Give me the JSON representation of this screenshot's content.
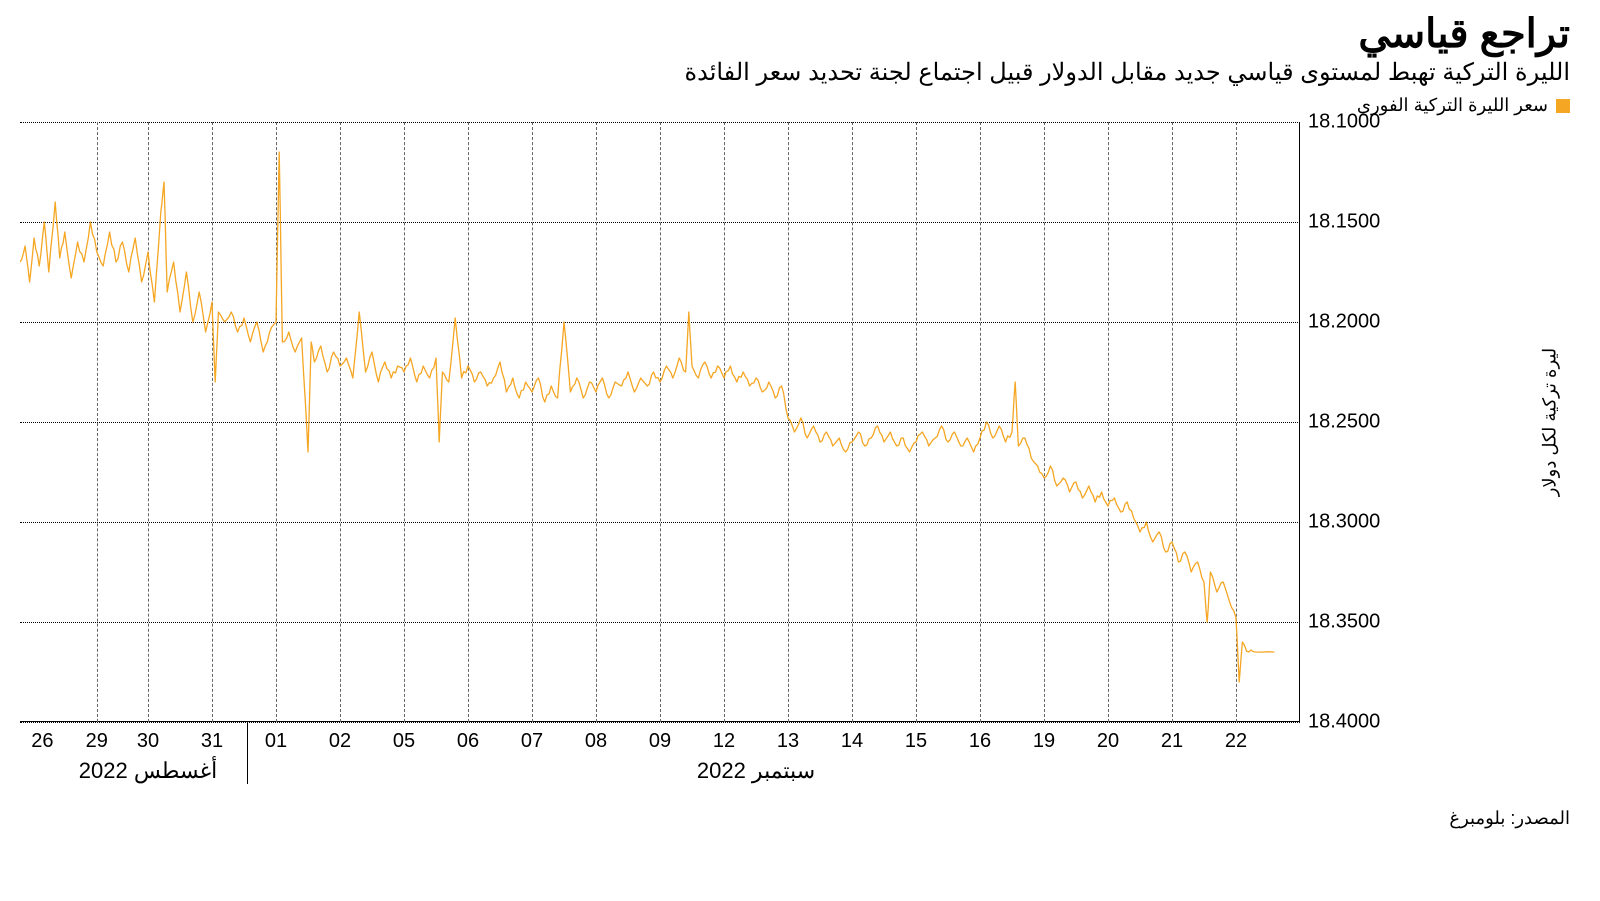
{
  "title": "تراجع قياسي",
  "subtitle": "الليرة التركية تهبط لمستوى قياسي جديد مقابل الدولار قبيل اجتماع لجنة تحديد سعر الفائدة",
  "legend": {
    "label": "سعر الليرة التركية الفوري",
    "color": "#f5a623"
  },
  "source": "المصدر: بلومبرغ",
  "chart": {
    "type": "line",
    "background_color": "#ffffff",
    "line_color": "#f5a623",
    "line_width": 1.3,
    "grid_color_h": "#000000",
    "grid_color_v": "#666666",
    "axis_color": "#000000",
    "label_fontsize": 20,
    "title_fontsize": 40,
    "subtitle_fontsize": 24,
    "ylabel": "ليرة تركية لكل دولار",
    "y_inverted": true,
    "ylim": [
      18.1,
      18.4
    ],
    "ytick_step": 0.05,
    "yticks": [
      "18.1000",
      "18.1500",
      "18.2000",
      "18.2500",
      "18.3000",
      "18.3500",
      "18.4000"
    ],
    "x_total_slots": 20,
    "xticks": [
      {
        "slot": 0.35,
        "label": "26"
      },
      {
        "slot": 1.2,
        "label": "29"
      },
      {
        "slot": 2.0,
        "label": "30"
      },
      {
        "slot": 3.0,
        "label": "31"
      },
      {
        "slot": 4.0,
        "label": "01"
      },
      {
        "slot": 5.0,
        "label": "02"
      },
      {
        "slot": 6.0,
        "label": "05"
      },
      {
        "slot": 7.0,
        "label": "06"
      },
      {
        "slot": 8.0,
        "label": "07"
      },
      {
        "slot": 9.0,
        "label": "08"
      },
      {
        "slot": 10.0,
        "label": "09"
      },
      {
        "slot": 11.0,
        "label": "12"
      },
      {
        "slot": 12.0,
        "label": "13"
      },
      {
        "slot": 13.0,
        "label": "14"
      },
      {
        "slot": 14.0,
        "label": "15"
      },
      {
        "slot": 15.0,
        "label": "16"
      },
      {
        "slot": 16.0,
        "label": "19"
      },
      {
        "slot": 17.0,
        "label": "20"
      },
      {
        "slot": 18.0,
        "label": "21"
      },
      {
        "slot": 19.0,
        "label": "22"
      }
    ],
    "x_group_labels": [
      {
        "center_slot": 2.0,
        "label": "أغسطس 2022"
      },
      {
        "center_slot": 11.5,
        "label": "سبتمبر 2022"
      }
    ],
    "x_group_separator_slot": 3.55,
    "series": [
      {
        "x": 0.0,
        "y": 18.17
      },
      {
        "x": 0.08,
        "y": 18.162
      },
      {
        "x": 0.15,
        "y": 18.18
      },
      {
        "x": 0.22,
        "y": 18.158
      },
      {
        "x": 0.3,
        "y": 18.172
      },
      {
        "x": 0.38,
        "y": 18.15
      },
      {
        "x": 0.45,
        "y": 18.175
      },
      {
        "x": 0.55,
        "y": 18.14
      },
      {
        "x": 0.62,
        "y": 18.168
      },
      {
        "x": 0.7,
        "y": 18.155
      },
      {
        "x": 0.8,
        "y": 18.178
      },
      {
        "x": 0.9,
        "y": 18.16
      },
      {
        "x": 1.0,
        "y": 18.17
      },
      {
        "x": 1.1,
        "y": 18.15
      },
      {
        "x": 1.2,
        "y": 18.165
      },
      {
        "x": 1.3,
        "y": 18.172
      },
      {
        "x": 1.4,
        "y": 18.155
      },
      {
        "x": 1.5,
        "y": 18.17
      },
      {
        "x": 1.6,
        "y": 18.16
      },
      {
        "x": 1.7,
        "y": 18.175
      },
      {
        "x": 1.8,
        "y": 18.158
      },
      {
        "x": 1.9,
        "y": 18.18
      },
      {
        "x": 2.0,
        "y": 18.165
      },
      {
        "x": 2.1,
        "y": 18.19
      },
      {
        "x": 2.2,
        "y": 18.145
      },
      {
        "x": 2.25,
        "y": 18.13
      },
      {
        "x": 2.3,
        "y": 18.185
      },
      {
        "x": 2.4,
        "y": 18.17
      },
      {
        "x": 2.5,
        "y": 18.195
      },
      {
        "x": 2.6,
        "y": 18.175
      },
      {
        "x": 2.7,
        "y": 18.2
      },
      {
        "x": 2.8,
        "y": 18.185
      },
      {
        "x": 2.9,
        "y": 18.205
      },
      {
        "x": 3.0,
        "y": 18.19
      },
      {
        "x": 3.05,
        "y": 18.23
      },
      {
        "x": 3.1,
        "y": 18.195
      },
      {
        "x": 3.2,
        "y": 18.2
      },
      {
        "x": 3.3,
        "y": 18.195
      },
      {
        "x": 3.4,
        "y": 18.205
      },
      {
        "x": 3.5,
        "y": 18.198
      },
      {
        "x": 3.6,
        "y": 18.21
      },
      {
        "x": 3.7,
        "y": 18.2
      },
      {
        "x": 3.8,
        "y": 18.215
      },
      {
        "x": 3.9,
        "y": 18.205
      },
      {
        "x": 4.0,
        "y": 18.2
      },
      {
        "x": 4.05,
        "y": 18.115
      },
      {
        "x": 4.1,
        "y": 18.21
      },
      {
        "x": 4.2,
        "y": 18.205
      },
      {
        "x": 4.3,
        "y": 18.215
      },
      {
        "x": 4.4,
        "y": 18.208
      },
      {
        "x": 4.5,
        "y": 18.265
      },
      {
        "x": 4.55,
        "y": 18.21
      },
      {
        "x": 4.6,
        "y": 18.22
      },
      {
        "x": 4.7,
        "y": 18.212
      },
      {
        "x": 4.8,
        "y": 18.225
      },
      {
        "x": 4.9,
        "y": 18.215
      },
      {
        "x": 5.0,
        "y": 18.222
      },
      {
        "x": 5.1,
        "y": 18.218
      },
      {
        "x": 5.2,
        "y": 18.228
      },
      {
        "x": 5.3,
        "y": 18.195
      },
      {
        "x": 5.4,
        "y": 18.225
      },
      {
        "x": 5.5,
        "y": 18.215
      },
      {
        "x": 5.6,
        "y": 18.23
      },
      {
        "x": 5.7,
        "y": 18.22
      },
      {
        "x": 5.8,
        "y": 18.228
      },
      {
        "x": 5.9,
        "y": 18.222
      },
      {
        "x": 6.0,
        "y": 18.225
      },
      {
        "x": 6.1,
        "y": 18.218
      },
      {
        "x": 6.2,
        "y": 18.23
      },
      {
        "x": 6.3,
        "y": 18.222
      },
      {
        "x": 6.4,
        "y": 18.228
      },
      {
        "x": 6.5,
        "y": 18.218
      },
      {
        "x": 6.55,
        "y": 18.26
      },
      {
        "x": 6.6,
        "y": 18.225
      },
      {
        "x": 6.7,
        "y": 18.23
      },
      {
        "x": 6.8,
        "y": 18.198
      },
      {
        "x": 6.9,
        "y": 18.228
      },
      {
        "x": 7.0,
        "y": 18.222
      },
      {
        "x": 7.1,
        "y": 18.23
      },
      {
        "x": 7.2,
        "y": 18.225
      },
      {
        "x": 7.3,
        "y": 18.232
      },
      {
        "x": 7.4,
        "y": 18.228
      },
      {
        "x": 7.5,
        "y": 18.22
      },
      {
        "x": 7.6,
        "y": 18.235
      },
      {
        "x": 7.7,
        "y": 18.228
      },
      {
        "x": 7.8,
        "y": 18.238
      },
      {
        "x": 7.9,
        "y": 18.23
      },
      {
        "x": 8.0,
        "y": 18.235
      },
      {
        "x": 8.1,
        "y": 18.228
      },
      {
        "x": 8.2,
        "y": 18.24
      },
      {
        "x": 8.3,
        "y": 18.232
      },
      {
        "x": 8.4,
        "y": 18.238
      },
      {
        "x": 8.5,
        "y": 18.2
      },
      {
        "x": 8.6,
        "y": 18.235
      },
      {
        "x": 8.7,
        "y": 18.228
      },
      {
        "x": 8.8,
        "y": 18.238
      },
      {
        "x": 8.9,
        "y": 18.23
      },
      {
        "x": 9.0,
        "y": 18.235
      },
      {
        "x": 9.1,
        "y": 18.228
      },
      {
        "x": 9.2,
        "y": 18.238
      },
      {
        "x": 9.3,
        "y": 18.23
      },
      {
        "x": 9.4,
        "y": 18.232
      },
      {
        "x": 9.5,
        "y": 18.225
      },
      {
        "x": 9.6,
        "y": 18.235
      },
      {
        "x": 9.7,
        "y": 18.228
      },
      {
        "x": 9.8,
        "y": 18.232
      },
      {
        "x": 9.9,
        "y": 18.225
      },
      {
        "x": 10.0,
        "y": 18.23
      },
      {
        "x": 10.1,
        "y": 18.222
      },
      {
        "x": 10.2,
        "y": 18.228
      },
      {
        "x": 10.3,
        "y": 18.218
      },
      {
        "x": 10.4,
        "y": 18.225
      },
      {
        "x": 10.45,
        "y": 18.195
      },
      {
        "x": 10.5,
        "y": 18.222
      },
      {
        "x": 10.6,
        "y": 18.228
      },
      {
        "x": 10.7,
        "y": 18.22
      },
      {
        "x": 10.8,
        "y": 18.228
      },
      {
        "x": 10.9,
        "y": 18.222
      },
      {
        "x": 11.0,
        "y": 18.228
      },
      {
        "x": 11.1,
        "y": 18.222
      },
      {
        "x": 11.2,
        "y": 18.23
      },
      {
        "x": 11.3,
        "y": 18.225
      },
      {
        "x": 11.4,
        "y": 18.232
      },
      {
        "x": 11.5,
        "y": 18.228
      },
      {
        "x": 11.6,
        "y": 18.235
      },
      {
        "x": 11.7,
        "y": 18.23
      },
      {
        "x": 11.8,
        "y": 18.238
      },
      {
        "x": 11.9,
        "y": 18.232
      },
      {
        "x": 12.0,
        "y": 18.248
      },
      {
        "x": 12.1,
        "y": 18.255
      },
      {
        "x": 12.2,
        "y": 18.248
      },
      {
        "x": 12.3,
        "y": 18.258
      },
      {
        "x": 12.4,
        "y": 18.252
      },
      {
        "x": 12.5,
        "y": 18.26
      },
      {
        "x": 12.6,
        "y": 18.255
      },
      {
        "x": 12.7,
        "y": 18.262
      },
      {
        "x": 12.8,
        "y": 18.258
      },
      {
        "x": 12.9,
        "y": 18.265
      },
      {
        "x": 13.0,
        "y": 18.26
      },
      {
        "x": 13.1,
        "y": 18.255
      },
      {
        "x": 13.2,
        "y": 18.262
      },
      {
        "x": 13.3,
        "y": 18.258
      },
      {
        "x": 13.4,
        "y": 18.252
      },
      {
        "x": 13.5,
        "y": 18.26
      },
      {
        "x": 13.6,
        "y": 18.255
      },
      {
        "x": 13.7,
        "y": 18.262
      },
      {
        "x": 13.8,
        "y": 18.258
      },
      {
        "x": 13.9,
        "y": 18.265
      },
      {
        "x": 14.0,
        "y": 18.26
      },
      {
        "x": 14.1,
        "y": 18.255
      },
      {
        "x": 14.2,
        "y": 18.262
      },
      {
        "x": 14.3,
        "y": 18.258
      },
      {
        "x": 14.4,
        "y": 18.252
      },
      {
        "x": 14.5,
        "y": 18.26
      },
      {
        "x": 14.6,
        "y": 18.255
      },
      {
        "x": 14.7,
        "y": 18.262
      },
      {
        "x": 14.8,
        "y": 18.258
      },
      {
        "x": 14.9,
        "y": 18.265
      },
      {
        "x": 15.0,
        "y": 18.258
      },
      {
        "x": 15.1,
        "y": 18.25
      },
      {
        "x": 15.2,
        "y": 18.258
      },
      {
        "x": 15.3,
        "y": 18.252
      },
      {
        "x": 15.4,
        "y": 18.26
      },
      {
        "x": 15.5,
        "y": 18.255
      },
      {
        "x": 15.55,
        "y": 18.23
      },
      {
        "x": 15.6,
        "y": 18.262
      },
      {
        "x": 15.7,
        "y": 18.258
      },
      {
        "x": 15.8,
        "y": 18.268
      },
      {
        "x": 15.9,
        "y": 18.272
      },
      {
        "x": 16.0,
        "y": 18.278
      },
      {
        "x": 16.1,
        "y": 18.272
      },
      {
        "x": 16.2,
        "y": 18.282
      },
      {
        "x": 16.3,
        "y": 18.278
      },
      {
        "x": 16.4,
        "y": 18.285
      },
      {
        "x": 16.5,
        "y": 18.28
      },
      {
        "x": 16.6,
        "y": 18.288
      },
      {
        "x": 16.7,
        "y": 18.282
      },
      {
        "x": 16.8,
        "y": 18.29
      },
      {
        "x": 16.9,
        "y": 18.285
      },
      {
        "x": 17.0,
        "y": 18.292
      },
      {
        "x": 17.1,
        "y": 18.288
      },
      {
        "x": 17.2,
        "y": 18.295
      },
      {
        "x": 17.3,
        "y": 18.29
      },
      {
        "x": 17.4,
        "y": 18.298
      },
      {
        "x": 17.5,
        "y": 18.305
      },
      {
        "x": 17.6,
        "y": 18.3
      },
      {
        "x": 17.7,
        "y": 18.31
      },
      {
        "x": 17.8,
        "y": 18.305
      },
      {
        "x": 17.9,
        "y": 18.315
      },
      {
        "x": 18.0,
        "y": 18.31
      },
      {
        "x": 18.1,
        "y": 18.32
      },
      {
        "x": 18.2,
        "y": 18.315
      },
      {
        "x": 18.3,
        "y": 18.325
      },
      {
        "x": 18.4,
        "y": 18.32
      },
      {
        "x": 18.5,
        "y": 18.33
      },
      {
        "x": 18.55,
        "y": 18.35
      },
      {
        "x": 18.6,
        "y": 18.325
      },
      {
        "x": 18.7,
        "y": 18.335
      },
      {
        "x": 18.8,
        "y": 18.33
      },
      {
        "x": 18.9,
        "y": 18.34
      },
      {
        "x": 19.0,
        "y": 18.348
      },
      {
        "x": 19.05,
        "y": 18.38
      },
      {
        "x": 19.1,
        "y": 18.36
      },
      {
        "x": 19.2,
        "y": 18.365
      },
      {
        "x": 19.3,
        "y": 18.365
      },
      {
        "x": 19.6,
        "y": 18.365
      }
    ]
  }
}
